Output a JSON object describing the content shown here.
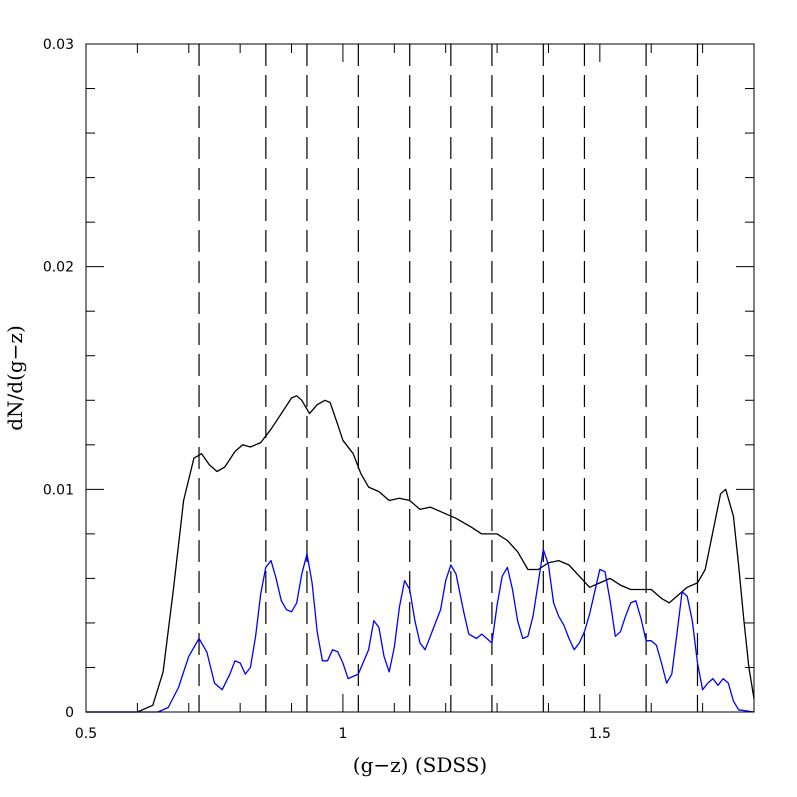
{
  "chart_data": {
    "type": "line",
    "xlabel": "(g−z)  (SDSS)",
    "ylabel": "dN/d(g−z)",
    "xlim": [
      0.5,
      1.8
    ],
    "ylim": [
      0,
      0.03
    ],
    "x_ticks": [
      {
        "value": 0.5,
        "label": "0.5"
      },
      {
        "value": 1.0,
        "label": "1"
      },
      {
        "value": 1.5,
        "label": "1.5"
      }
    ],
    "y_ticks": [
      {
        "value": 0,
        "label": "0"
      },
      {
        "value": 0.01,
        "label": "0.01"
      },
      {
        "value": 0.02,
        "label": "0.02"
      },
      {
        "value": 0.03,
        "label": "0.03"
      }
    ],
    "x_minor_step": 0.1,
    "y_minor_step": 0.002,
    "vlines": [
      0.72,
      0.85,
      0.93,
      1.03,
      1.13,
      1.21,
      1.29,
      1.39,
      1.47,
      1.59,
      1.69
    ],
    "series": [
      {
        "color": "#000000",
        "points": [
          [
            0.5,
            0
          ],
          [
            0.6,
            0
          ],
          [
            0.63,
            0.0003
          ],
          [
            0.65,
            0.0018
          ],
          [
            0.67,
            0.0055
          ],
          [
            0.69,
            0.0095
          ],
          [
            0.71,
            0.0114
          ],
          [
            0.725,
            0.0116
          ],
          [
            0.74,
            0.0111
          ],
          [
            0.755,
            0.0108
          ],
          [
            0.77,
            0.011
          ],
          [
            0.79,
            0.0117
          ],
          [
            0.805,
            0.012
          ],
          [
            0.82,
            0.0119
          ],
          [
            0.84,
            0.0121
          ],
          [
            0.86,
            0.0127
          ],
          [
            0.88,
            0.0134
          ],
          [
            0.9,
            0.0141
          ],
          [
            0.91,
            0.0142
          ],
          [
            0.92,
            0.014
          ],
          [
            0.935,
            0.0134
          ],
          [
            0.95,
            0.0138
          ],
          [
            0.965,
            0.014
          ],
          [
            0.975,
            0.0139
          ],
          [
            0.99,
            0.0129
          ],
          [
            1.0,
            0.0122
          ],
          [
            1.02,
            0.0116
          ],
          [
            1.035,
            0.0107
          ],
          [
            1.05,
            0.0101
          ],
          [
            1.07,
            0.0099
          ],
          [
            1.09,
            0.0095
          ],
          [
            1.11,
            0.0096
          ],
          [
            1.13,
            0.0095
          ],
          [
            1.15,
            0.0091
          ],
          [
            1.17,
            0.0092
          ],
          [
            1.2,
            0.0089
          ],
          [
            1.22,
            0.0087
          ],
          [
            1.25,
            0.0083
          ],
          [
            1.27,
            0.008
          ],
          [
            1.3,
            0.008
          ],
          [
            1.32,
            0.0077
          ],
          [
            1.34,
            0.0072
          ],
          [
            1.36,
            0.0064
          ],
          [
            1.38,
            0.0064
          ],
          [
            1.4,
            0.0067
          ],
          [
            1.42,
            0.0068
          ],
          [
            1.44,
            0.0066
          ],
          [
            1.46,
            0.0061
          ],
          [
            1.48,
            0.0056
          ],
          [
            1.5,
            0.0058
          ],
          [
            1.52,
            0.006
          ],
          [
            1.54,
            0.0057
          ],
          [
            1.56,
            0.0055
          ],
          [
            1.6,
            0.0055
          ],
          [
            1.62,
            0.0051
          ],
          [
            1.635,
            0.0049
          ],
          [
            1.65,
            0.0052
          ],
          [
            1.67,
            0.0056
          ],
          [
            1.69,
            0.0058
          ],
          [
            1.705,
            0.0064
          ],
          [
            1.72,
            0.0081
          ],
          [
            1.735,
            0.0098
          ],
          [
            1.745,
            0.01
          ],
          [
            1.76,
            0.0088
          ],
          [
            1.77,
            0.0066
          ],
          [
            1.78,
            0.0042
          ],
          [
            1.79,
            0.002
          ],
          [
            1.8,
            0.0006
          ]
        ]
      },
      {
        "color": "#0000ff",
        "points": [
          [
            0.5,
            0
          ],
          [
            0.64,
            0
          ],
          [
            0.66,
            0.0002
          ],
          [
            0.68,
            0.0011
          ],
          [
            0.7,
            0.0025
          ],
          [
            0.72,
            0.0033
          ],
          [
            0.735,
            0.0027
          ],
          [
            0.75,
            0.0013
          ],
          [
            0.765,
            0.001
          ],
          [
            0.78,
            0.0017
          ],
          [
            0.79,
            0.0023
          ],
          [
            0.8,
            0.0022
          ],
          [
            0.81,
            0.0017
          ],
          [
            0.82,
            0.002
          ],
          [
            0.83,
            0.0034
          ],
          [
            0.84,
            0.0053
          ],
          [
            0.85,
            0.0065
          ],
          [
            0.86,
            0.0068
          ],
          [
            0.87,
            0.006
          ],
          [
            0.88,
            0.005
          ],
          [
            0.89,
            0.0046
          ],
          [
            0.9,
            0.0045
          ],
          [
            0.91,
            0.0049
          ],
          [
            0.92,
            0.0062
          ],
          [
            0.93,
            0.0071
          ],
          [
            0.94,
            0.0058
          ],
          [
            0.95,
            0.0036
          ],
          [
            0.96,
            0.0023
          ],
          [
            0.97,
            0.0023
          ],
          [
            0.98,
            0.0028
          ],
          [
            0.99,
            0.0027
          ],
          [
            1.0,
            0.0022
          ],
          [
            1.01,
            0.0015
          ],
          [
            1.03,
            0.0017
          ],
          [
            1.05,
            0.0028
          ],
          [
            1.06,
            0.0041
          ],
          [
            1.07,
            0.0038
          ],
          [
            1.08,
            0.0025
          ],
          [
            1.09,
            0.0018
          ],
          [
            1.1,
            0.0029
          ],
          [
            1.11,
            0.0047
          ],
          [
            1.12,
            0.0059
          ],
          [
            1.13,
            0.0055
          ],
          [
            1.14,
            0.0041
          ],
          [
            1.15,
            0.0031
          ],
          [
            1.16,
            0.0028
          ],
          [
            1.17,
            0.0034
          ],
          [
            1.19,
            0.0046
          ],
          [
            1.2,
            0.0059
          ],
          [
            1.21,
            0.0066
          ],
          [
            1.22,
            0.0062
          ],
          [
            1.235,
            0.0045
          ],
          [
            1.245,
            0.0035
          ],
          [
            1.26,
            0.0033
          ],
          [
            1.27,
            0.0035
          ],
          [
            1.28,
            0.0033
          ],
          [
            1.29,
            0.0031
          ],
          [
            1.3,
            0.0048
          ],
          [
            1.31,
            0.0061
          ],
          [
            1.32,
            0.0065
          ],
          [
            1.33,
            0.0055
          ],
          [
            1.34,
            0.0041
          ],
          [
            1.35,
            0.0033
          ],
          [
            1.36,
            0.0034
          ],
          [
            1.37,
            0.0043
          ],
          [
            1.38,
            0.0058
          ],
          [
            1.39,
            0.0073
          ],
          [
            1.4,
            0.0066
          ],
          [
            1.41,
            0.0049
          ],
          [
            1.42,
            0.0043
          ],
          [
            1.43,
            0.0039
          ],
          [
            1.44,
            0.0033
          ],
          [
            1.45,
            0.0028
          ],
          [
            1.46,
            0.0031
          ],
          [
            1.47,
            0.0036
          ],
          [
            1.48,
            0.0044
          ],
          [
            1.49,
            0.0054
          ],
          [
            1.5,
            0.0064
          ],
          [
            1.51,
            0.0063
          ],
          [
            1.52,
            0.005
          ],
          [
            1.53,
            0.0034
          ],
          [
            1.54,
            0.0036
          ],
          [
            1.55,
            0.0043
          ],
          [
            1.56,
            0.0049
          ],
          [
            1.57,
            0.005
          ],
          [
            1.58,
            0.0042
          ],
          [
            1.59,
            0.0032
          ],
          [
            1.6,
            0.0032
          ],
          [
            1.61,
            0.003
          ],
          [
            1.62,
            0.0022
          ],
          [
            1.63,
            0.0013
          ],
          [
            1.64,
            0.0017
          ],
          [
            1.65,
            0.0035
          ],
          [
            1.66,
            0.0054
          ],
          [
            1.67,
            0.0052
          ],
          [
            1.68,
            0.0041
          ],
          [
            1.69,
            0.0022
          ],
          [
            1.7,
            0.001
          ],
          [
            1.71,
            0.0013
          ],
          [
            1.72,
            0.0015
          ],
          [
            1.73,
            0.0012
          ],
          [
            1.74,
            0.0015
          ],
          [
            1.75,
            0.0013
          ],
          [
            1.76,
            0.0005
          ],
          [
            1.77,
            0.0001
          ],
          [
            1.8,
            0
          ]
        ]
      }
    ]
  }
}
